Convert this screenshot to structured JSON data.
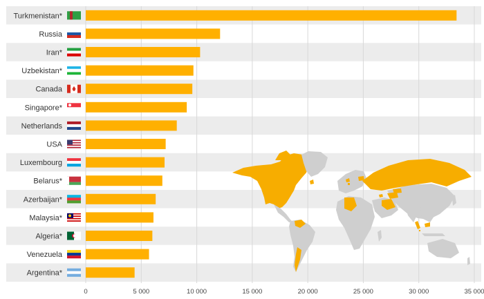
{
  "colors": {
    "bar": "#ffb000",
    "row_stripe": "#ececec",
    "map_land": "#cfcfcf",
    "map_highlight": "#f7ad00"
  },
  "chart_data": {
    "type": "bar",
    "orientation": "horizontal",
    "title": "",
    "xlabel": "",
    "ylabel": "",
    "categories": [
      "Turkmenistan*",
      "Russia",
      "Iran*",
      "Uzbekistan*",
      "Canada",
      "Singapore*",
      "Netherlands",
      "USA",
      "Luxembourg",
      "Belarus*",
      "Azerbaijan*",
      "Malaysia*",
      "Algeria*",
      "Venezuela",
      "Argentina*"
    ],
    "values": [
      33400,
      12100,
      10300,
      9700,
      9600,
      9100,
      8200,
      7200,
      7100,
      6900,
      6300,
      6100,
      6000,
      5700,
      4400
    ],
    "flags": [
      "turkmenistan-flag-icon",
      "russia-flag-icon",
      "iran-flag-icon",
      "uzbekistan-flag-icon",
      "canada-flag-icon",
      "singapore-flag-icon",
      "netherlands-flag-icon",
      "usa-flag-icon",
      "luxembourg-flag-icon",
      "belarus-flag-icon",
      "azerbaijan-flag-icon",
      "malaysia-flag-icon",
      "algeria-flag-icon",
      "venezuela-flag-icon",
      "argentina-flag-icon"
    ],
    "xlim": [
      0,
      35000
    ],
    "xticks": [
      0,
      5000,
      10000,
      15000,
      20000,
      25000,
      30000,
      35000
    ],
    "xtick_labels": [
      "0",
      "5 000",
      "10 000",
      "15 000",
      "20 000",
      "25 000",
      "30 000",
      "35 000"
    ],
    "grid": true,
    "legend": "none",
    "inset": "world-map-highlighting-listed-countries"
  }
}
